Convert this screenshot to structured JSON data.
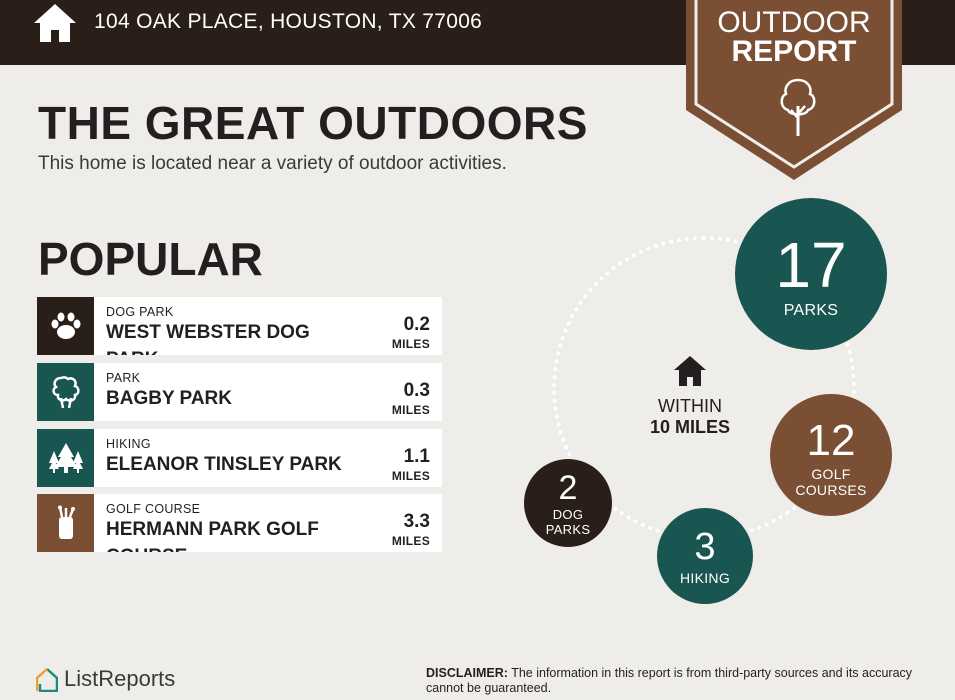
{
  "header": {
    "address": "104 OAK PLACE, HOUSTON, TX 77006",
    "home_icon": "house-icon",
    "badge_line1": "OUTDOOR",
    "badge_line2": "REPORT",
    "badge_icon": "tree-icon",
    "badge_color": "#7a4f33",
    "bar_color": "#2a1e19"
  },
  "intro": {
    "title": "THE GREAT OUTDOORS",
    "subtitle": "This home is located near a variety of outdoor activities."
  },
  "popular": {
    "heading": "POPULAR",
    "items": [
      {
        "category": "DOG PARK",
        "name": "WEST WEBSTER DOG PARK",
        "distance": "0.2",
        "unit": "MILES",
        "icon": "paw-icon",
        "color": "#2a1e19"
      },
      {
        "category": "PARK",
        "name": "BAGBY PARK",
        "distance": "0.3",
        "unit": "MILES",
        "icon": "bush-icon",
        "color": "#195551"
      },
      {
        "category": "HIKING",
        "name": "ELEANOR TINSLEY PARK",
        "distance": "1.1",
        "unit": "MILES",
        "icon": "pine-trees-icon",
        "color": "#195551"
      },
      {
        "category": "GOLF COURSE",
        "name": "HERMANN PARK GOLF COURSE",
        "distance": "3.3",
        "unit": "MILES",
        "icon": "golf-bag-icon",
        "color": "#7a4f33"
      }
    ]
  },
  "summary": {
    "within_line1": "WITHIN",
    "within_line2": "10 MILES",
    "within_icon": "house-icon",
    "stats": {
      "parks": {
        "count": "17",
        "label": "PARKS"
      },
      "golf": {
        "count": "12",
        "label1": "GOLF",
        "label2": "COURSES"
      },
      "hiking": {
        "count": "3",
        "label": "HIKING"
      },
      "dog": {
        "count": "2",
        "label1": "DOG",
        "label2": "PARKS"
      }
    }
  },
  "footer": {
    "brand": "ListReports",
    "brand_icon": "listreports-logo-icon",
    "disclaimer_label": "DISCLAIMER:",
    "disclaimer_text": " The information in this report is from third-party sources and its accuracy cannot be guaranteed."
  }
}
